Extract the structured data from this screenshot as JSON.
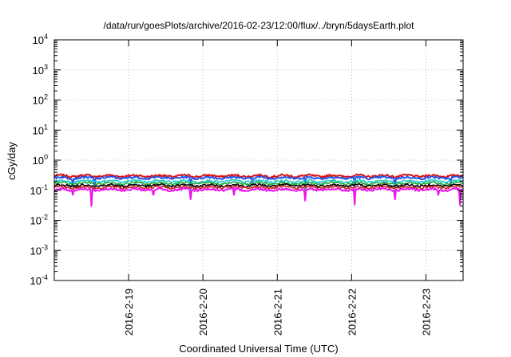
{
  "chart_data": {
    "type": "line",
    "title": "/data/run/goesPlots/archive/2016-02-23/12:00/flux/../bryn/5daysEarth.plot",
    "xlabel": "Coordinated Universal Time (UTC)",
    "ylabel": "cGy/day",
    "y_scale": "log",
    "ylim": [
      0.0001,
      10000
    ],
    "y_ticks": [
      {
        "value": 0.0001,
        "base": "10",
        "exp": "-4"
      },
      {
        "value": 0.001,
        "base": "10",
        "exp": "-3"
      },
      {
        "value": 0.01,
        "base": "10",
        "exp": "-2"
      },
      {
        "value": 0.1,
        "base": "10",
        "exp": "-1"
      },
      {
        "value": 1,
        "base": "10",
        "exp": "0"
      },
      {
        "value": 10,
        "base": "10",
        "exp": "1"
      },
      {
        "value": 100,
        "base": "10",
        "exp": "2"
      },
      {
        "value": 1000,
        "base": "10",
        "exp": "3"
      },
      {
        "value": 10000,
        "base": "10",
        "exp": "4"
      }
    ],
    "xlim": [
      "2016-02-18 00:00",
      "2016-02-23 12:00"
    ],
    "x_ticks": [
      "2016-2-19",
      "2016-2-20",
      "2016-2-21",
      "2016-2-22",
      "2016-2-23"
    ],
    "grid": true,
    "legend": "none",
    "series": [
      {
        "color": "#dd1111",
        "level": 0.3,
        "dips": []
      },
      {
        "color": "#2255ee",
        "level": 0.26,
        "dips": [
          {
            "x": "2016-02-18 06:00",
            "y": 0.14
          },
          {
            "x": "2016-02-18 13:00",
            "y": 0.1
          },
          {
            "x": "2016-02-19 20:00",
            "y": 0.1
          },
          {
            "x": "2016-02-20 16:00",
            "y": 0.15
          },
          {
            "x": "2016-02-21 09:00",
            "y": 0.1
          },
          {
            "x": "2016-02-22 01:00",
            "y": 0.14
          },
          {
            "x": "2016-02-22 14:00",
            "y": 0.1
          },
          {
            "x": "2016-02-23 08:00",
            "y": 0.15
          }
        ]
      },
      {
        "color": "#22cccc",
        "level": 0.2,
        "dips": [
          {
            "x": "2016-02-18 06:00",
            "y": 0.12
          },
          {
            "x": "2016-02-19 20:00",
            "y": 0.1
          },
          {
            "x": "2016-02-21 09:00",
            "y": 0.1
          },
          {
            "x": "2016-02-22 14:00",
            "y": 0.1
          }
        ]
      },
      {
        "color": "#22aa44",
        "level": 0.17,
        "dips": []
      },
      {
        "color": "#000000",
        "level": 0.145,
        "dips": []
      },
      {
        "color": "#cc2222",
        "level": 0.125,
        "dips": []
      },
      {
        "color": "#ee11ee",
        "level": 0.105,
        "dips": [
          {
            "x": "2016-02-18 06:00",
            "y": 0.07
          },
          {
            "x": "2016-02-18 12:00",
            "y": 0.03
          },
          {
            "x": "2016-02-19 08:00",
            "y": 0.07
          },
          {
            "x": "2016-02-19 20:00",
            "y": 0.05
          },
          {
            "x": "2016-02-20 10:00",
            "y": 0.07
          },
          {
            "x": "2016-02-21 09:00",
            "y": 0.045
          },
          {
            "x": "2016-02-22 01:00",
            "y": 0.033
          },
          {
            "x": "2016-02-22 14:00",
            "y": 0.05
          },
          {
            "x": "2016-02-23 04:00",
            "y": 0.07
          },
          {
            "x": "2016-02-23 11:00",
            "y": 0.033
          }
        ]
      }
    ]
  }
}
